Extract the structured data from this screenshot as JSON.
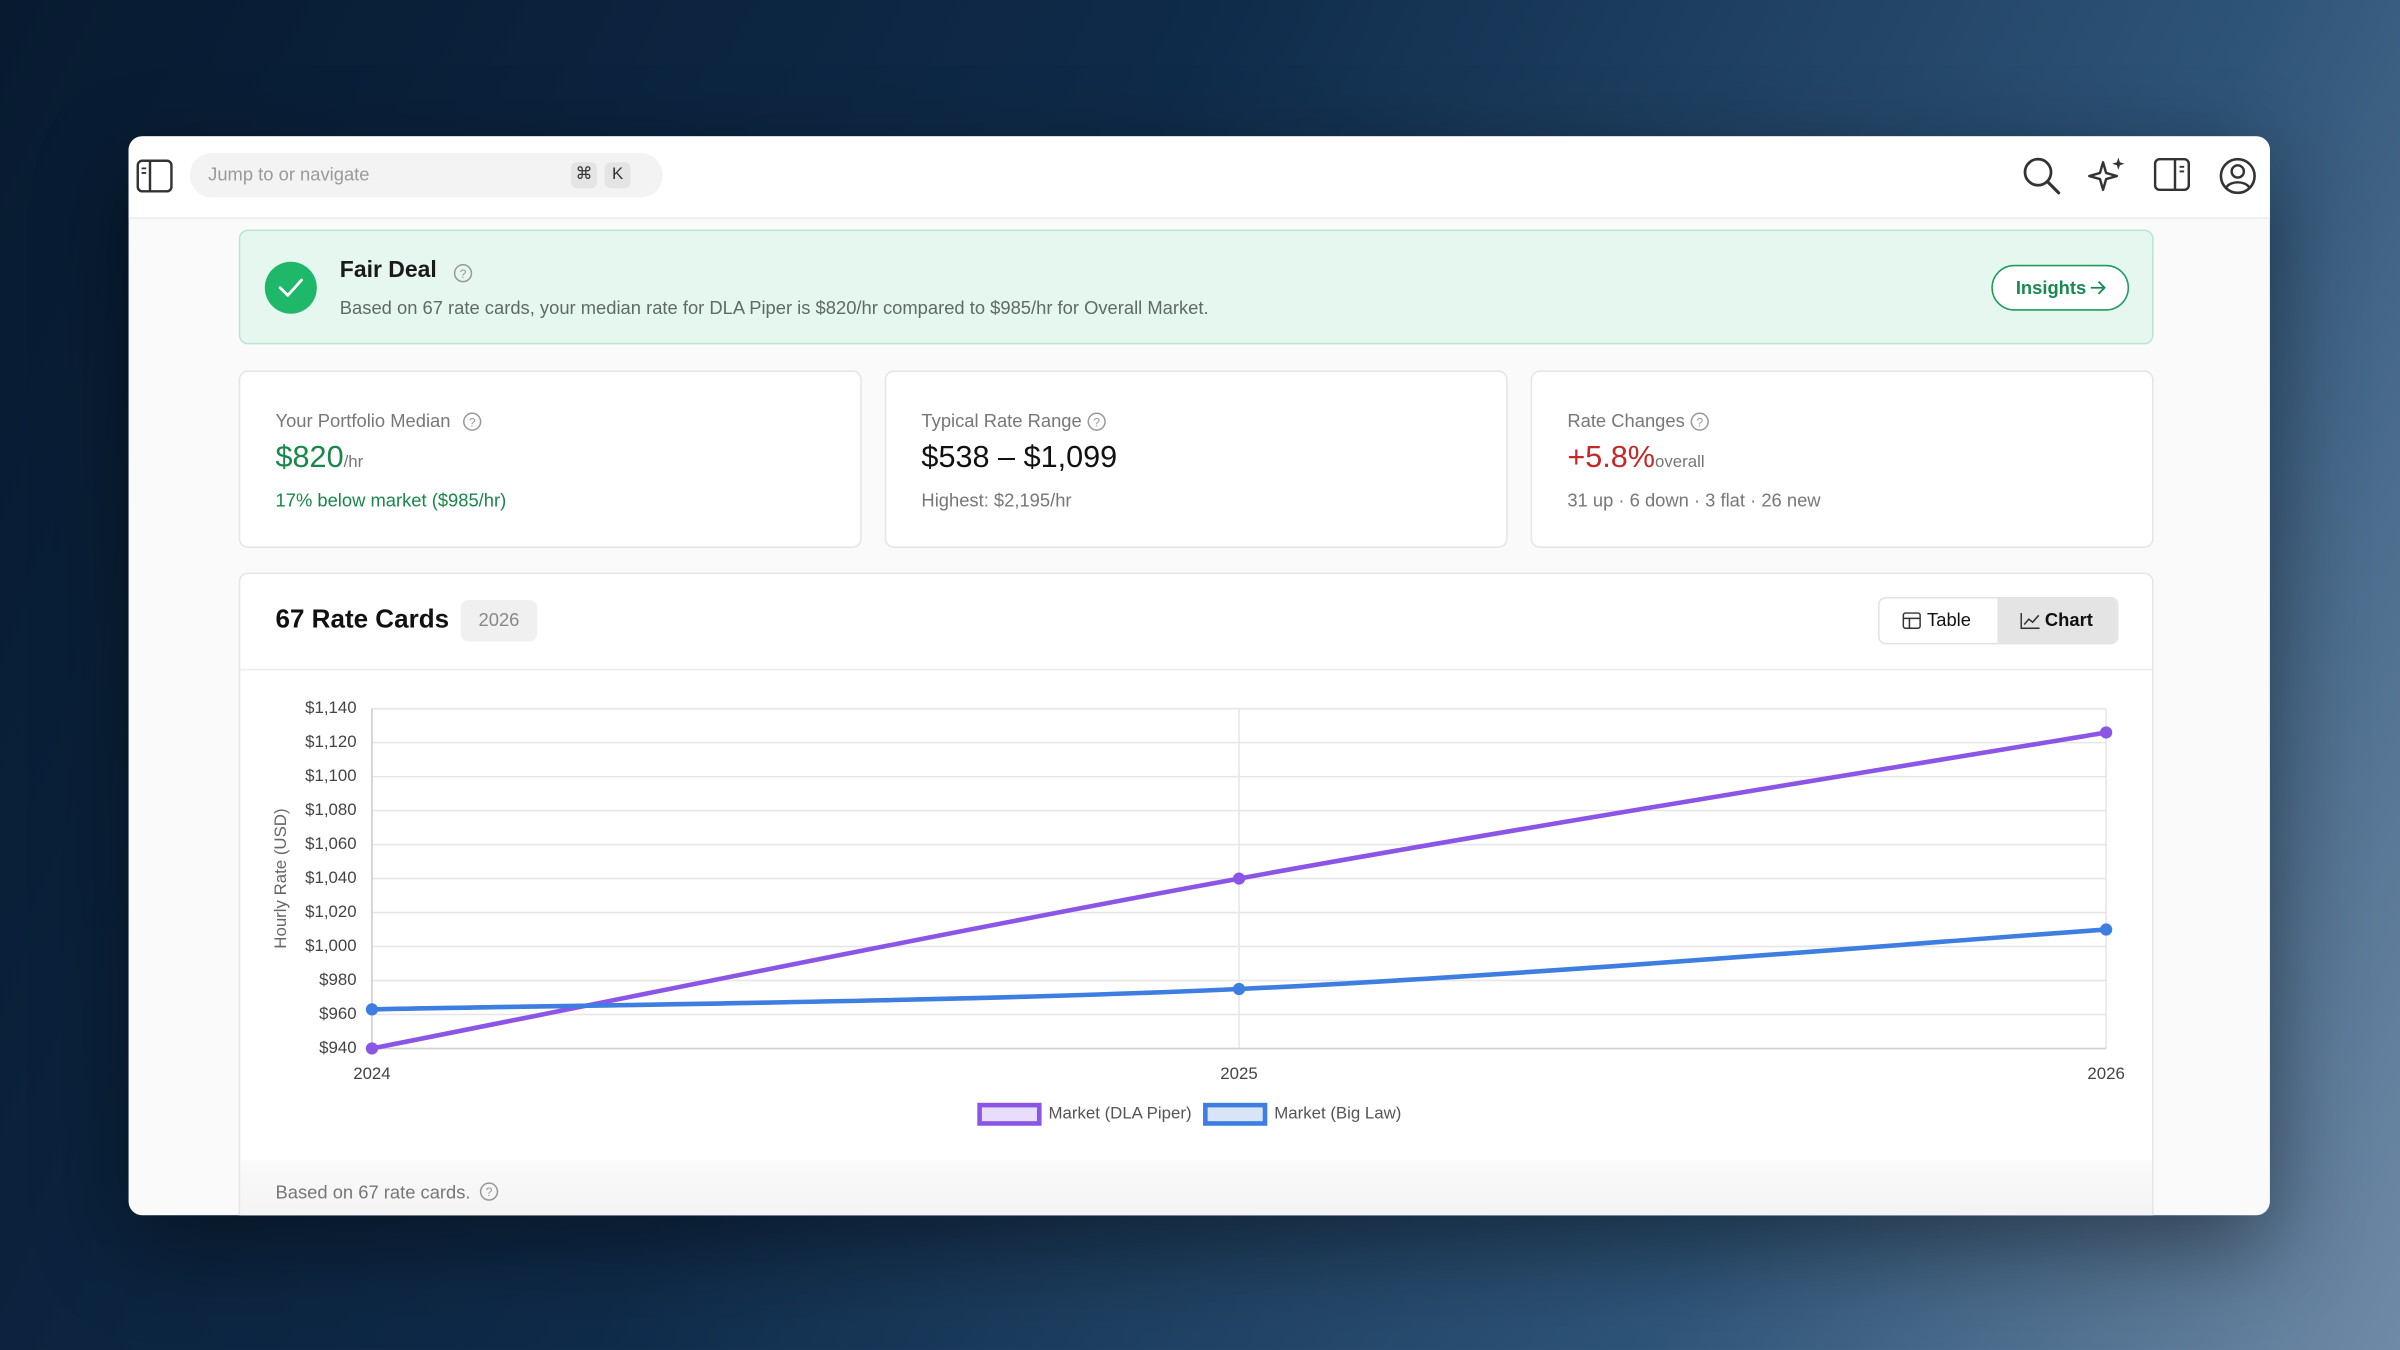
{
  "search": {
    "placeholder": "Jump to or navigate",
    "shortcut": [
      "⌘",
      "K"
    ]
  },
  "banner": {
    "title": "Fair Deal",
    "text": "Based on 67 rate cards, your median rate for DLA Piper is $820/hr compared to $985/hr for Overall Market.",
    "button": "Insights"
  },
  "stats": [
    {
      "label": "Your Portfolio Median",
      "value": "$820",
      "unit": "/hr",
      "note": "17% below market ($985/hr)"
    },
    {
      "label": "Typical Rate Range",
      "value": "$538 – $1,099",
      "note": "Highest: $2,195/hr"
    },
    {
      "label": "Rate Changes",
      "value": "+5.8%",
      "unit": "overall",
      "note": "31 up · 6 down · 3 flat · 26 new"
    }
  ],
  "section": {
    "title": "67 Rate Cards",
    "badge": "2026",
    "tabs": [
      "Table",
      "Chart"
    ],
    "footer": "Based on 67 rate cards."
  },
  "chart": {
    "type": "line",
    "ylabel": "Hourly Rate (USD)",
    "categories": [
      "2024",
      "2025",
      "2026"
    ],
    "series": [
      {
        "name": "Market (DLA Piper)",
        "color": "#8b55e6",
        "values": [
          940,
          1040,
          1126
        ]
      },
      {
        "name": "Market (Big Law)",
        "color": "#3d7ee0",
        "values": [
          963,
          975,
          1010
        ]
      }
    ],
    "ylim": [
      940,
      1140
    ],
    "yticks": [
      {
        "value": 940,
        "label": "$940"
      },
      {
        "value": 960,
        "label": "$960"
      },
      {
        "value": 980,
        "label": "$980"
      },
      {
        "value": 1000,
        "label": "$1,000"
      },
      {
        "value": 1020,
        "label": "$1,020"
      },
      {
        "value": 1040,
        "label": "$1,040"
      },
      {
        "value": 1060,
        "label": "$1,060"
      },
      {
        "value": 1080,
        "label": "$1,080"
      },
      {
        "value": 1100,
        "label": "$1,100"
      },
      {
        "value": 1120,
        "label": "$1,120"
      },
      {
        "value": 1140,
        "label": "$1,140"
      }
    ],
    "grid": true
  }
}
